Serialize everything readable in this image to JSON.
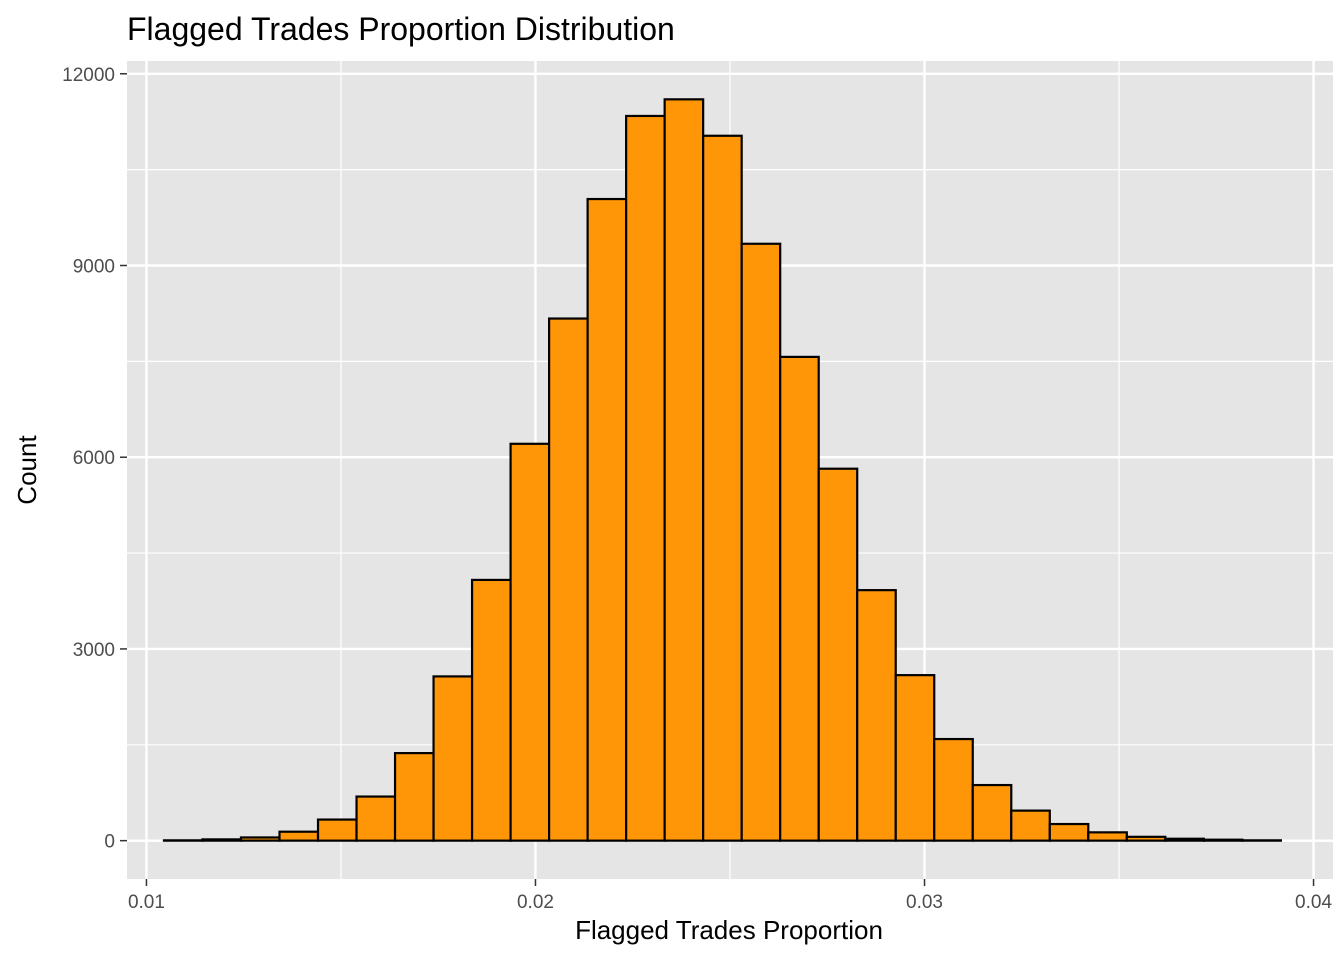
{
  "chart_data": {
    "type": "bar",
    "subtype": "histogram",
    "title": "Flagged Trades Proportion Distribution",
    "xlabel": "Flagged Trades Proportion",
    "ylabel": "Count",
    "xlim": [
      0.0095,
      0.0405
    ],
    "ylim": [
      -600,
      12200
    ],
    "x_ticks": [
      {
        "value": 0.01,
        "label": "0.01"
      },
      {
        "value": 0.02,
        "label": "0.02"
      },
      {
        "value": 0.03,
        "label": "0.03"
      },
      {
        "value": 0.04,
        "label": "0.04"
      }
    ],
    "y_ticks": [
      {
        "value": 0,
        "label": "0"
      },
      {
        "value": 3000,
        "label": "3000"
      },
      {
        "value": 6000,
        "label": "6000"
      },
      {
        "value": 9000,
        "label": "9000"
      },
      {
        "value": 12000,
        "label": "12000"
      }
    ],
    "x_minor_gridlines": [
      0.015,
      0.025,
      0.035
    ],
    "y_minor_gridlines": [
      1500,
      4500,
      7500,
      10500
    ],
    "grid": true,
    "bin_edges": [
      0.01045,
      0.01144,
      0.01243,
      0.01342,
      0.01441,
      0.0154,
      0.01639,
      0.01738,
      0.01837,
      0.01936,
      0.02035,
      0.02134,
      0.02233,
      0.02332,
      0.02431,
      0.0253,
      0.02629,
      0.02728,
      0.02827,
      0.02926,
      0.03025,
      0.03124,
      0.03223,
      0.03322,
      0.03421,
      0.0352,
      0.03619,
      0.03718,
      0.03817,
      0.03916
    ],
    "counts": [
      5,
      20,
      50,
      140,
      330,
      690,
      1370,
      2570,
      4080,
      6210,
      8170,
      10040,
      11340,
      11600,
      11030,
      9340,
      7570,
      5820,
      3920,
      2590,
      1590,
      870,
      470,
      260,
      130,
      60,
      30,
      15,
      5
    ],
    "colors": {
      "bar_fill": "#ff9608",
      "bar_outline": "#000000",
      "panel_background": "#e5e5e5",
      "gridline": "#ffffff"
    }
  }
}
